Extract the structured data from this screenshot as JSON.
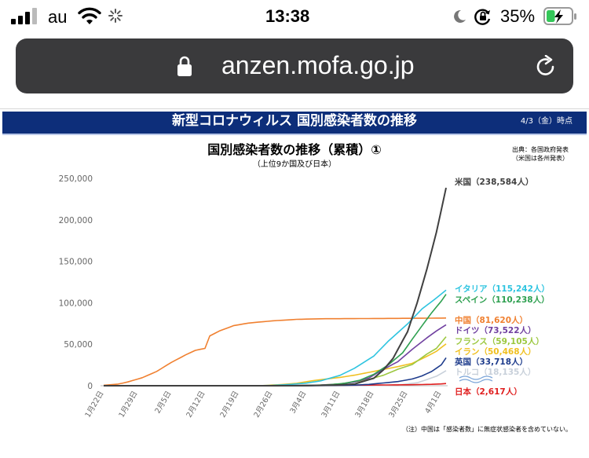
{
  "status_bar": {
    "carrier": "au",
    "time": "13:38",
    "battery_percent": "35%",
    "battery_level": 0.35,
    "battery_color": "#34c759"
  },
  "browser": {
    "url": "anzen.mofa.go.jp",
    "lock_icon": "lock-icon",
    "reload_icon": "reload-icon"
  },
  "banner": {
    "title": "新型コロナウィルス 国別感染者数の推移",
    "date": "4/3（金）時点",
    "background": "#0d2e7a"
  },
  "chart_data": {
    "type": "line",
    "title": "国別感染者数の推移（累積）①",
    "subtitle": "（上位9か国及び日本）",
    "source_lines": [
      "出典：各国政府発表",
      "（米国は各州発表）"
    ],
    "footnote": "（注）中国は「感染者数」に無症状感染者を含めていない。",
    "ylim": [
      0,
      250000
    ],
    "yticks": [
      "0",
      "50,000",
      "100,000",
      "150,000",
      "200,000",
      "250,000"
    ],
    "ytick_values": [
      0,
      50000,
      100000,
      150000,
      200000,
      250000
    ],
    "grid": false,
    "legend": "right",
    "x": [
      "1/22",
      "1/23",
      "1/24",
      "1/25",
      "1/26",
      "1/27",
      "1/28",
      "1/29",
      "1/30",
      "1/31",
      "2/1",
      "2/2",
      "2/3",
      "2/4",
      "2/5",
      "2/6",
      "2/7",
      "2/8",
      "2/9",
      "2/10",
      "2/11",
      "2/12",
      "2/13",
      "2/14",
      "2/15",
      "2/16",
      "2/17",
      "2/18",
      "2/19",
      "2/20",
      "2/21",
      "2/22",
      "2/23",
      "2/24",
      "2/25",
      "2/26",
      "2/27",
      "2/28",
      "2/29",
      "3/1",
      "3/2",
      "3/3",
      "3/4",
      "3/5",
      "3/6",
      "3/7",
      "3/8",
      "3/9",
      "3/10",
      "3/11",
      "3/12",
      "3/13",
      "3/14",
      "3/15",
      "3/16",
      "3/17",
      "3/18",
      "3/19",
      "3/20",
      "3/21",
      "3/22",
      "3/23",
      "3/24",
      "3/25",
      "3/26",
      "3/27",
      "3/28",
      "3/29",
      "3/30",
      "3/31",
      "4/1",
      "4/2"
    ],
    "xticks": [
      "1月22日",
      "1月29日",
      "2月5日",
      "2月12日",
      "2月19日",
      "2月26日",
      "3月4日",
      "3月11日",
      "3月18日",
      "3月25日",
      "4月1日"
    ],
    "xtick_index": [
      0,
      7,
      14,
      21,
      28,
      35,
      42,
      49,
      56,
      63,
      70
    ],
    "series": [
      {
        "name": "米国",
        "label": "米国（238,584人）",
        "color": "#404040",
        "anchors": [
          [
            0,
            0
          ],
          [
            33,
            15
          ],
          [
            42,
            100
          ],
          [
            49,
            1000
          ],
          [
            52,
            2000
          ],
          [
            56,
            9000
          ],
          [
            58,
            19000
          ],
          [
            60,
            33000
          ],
          [
            63,
            65000
          ],
          [
            65,
            100000
          ],
          [
            67,
            140000
          ],
          [
            69,
            185000
          ],
          [
            71,
            238584
          ]
        ]
      },
      {
        "name": "イタリア",
        "label": "イタリア（115,242人）",
        "color": "#2ec4e0",
        "anchors": [
          [
            0,
            0
          ],
          [
            31,
            10
          ],
          [
            35,
            400
          ],
          [
            39,
            1700
          ],
          [
            42,
            3100
          ],
          [
            45,
            5900
          ],
          [
            49,
            12500
          ],
          [
            52,
            21000
          ],
          [
            56,
            35700
          ],
          [
            59,
            53600
          ],
          [
            63,
            74400
          ],
          [
            66,
            92500
          ],
          [
            69,
            105800
          ],
          [
            71,
            115242
          ]
        ]
      },
      {
        "name": "スペイン",
        "label": "スペイン（110,238人）",
        "color": "#2ea050",
        "anchors": [
          [
            0,
            0
          ],
          [
            40,
            150
          ],
          [
            44,
            400
          ],
          [
            47,
            1200
          ],
          [
            50,
            3000
          ],
          [
            53,
            6400
          ],
          [
            56,
            13700
          ],
          [
            59,
            25000
          ],
          [
            62,
            39700
          ],
          [
            64,
            56200
          ],
          [
            66,
            72200
          ],
          [
            68,
            87900
          ],
          [
            70,
            102000
          ],
          [
            71,
            110238
          ]
        ]
      },
      {
        "name": "中国",
        "label": "中国（81,620人）",
        "color": "#f08030",
        "anchors": [
          [
            0,
            550
          ],
          [
            3,
            2000
          ],
          [
            5,
            4500
          ],
          [
            8,
            9700
          ],
          [
            11,
            17200
          ],
          [
            14,
            28000
          ],
          [
            17,
            37200
          ],
          [
            19,
            42600
          ],
          [
            21,
            45000
          ],
          [
            22,
            60000
          ],
          [
            24,
            66000
          ],
          [
            27,
            72500
          ],
          [
            30,
            75500
          ],
          [
            35,
            78200
          ],
          [
            40,
            80000
          ],
          [
            45,
            80700
          ],
          [
            55,
            81000
          ],
          [
            65,
            81300
          ],
          [
            71,
            81620
          ]
        ]
      },
      {
        "name": "ドイツ",
        "label": "ドイツ（73,522人）",
        "color": "#7040a0",
        "anchors": [
          [
            0,
            0
          ],
          [
            40,
            150
          ],
          [
            45,
            800
          ],
          [
            49,
            2000
          ],
          [
            52,
            4500
          ],
          [
            55,
            9300
          ],
          [
            58,
            19800
          ],
          [
            61,
            29000
          ],
          [
            64,
            43900
          ],
          [
            67,
            57600
          ],
          [
            69,
            66000
          ],
          [
            71,
            73522
          ]
        ]
      },
      {
        "name": "フランス",
        "label": "フランス（59,105人）",
        "color": "#9cc840",
        "anchors": [
          [
            0,
            0
          ],
          [
            38,
            100
          ],
          [
            42,
            300
          ],
          [
            46,
            1100
          ],
          [
            49,
            2300
          ],
          [
            52,
            4500
          ],
          [
            55,
            7700
          ],
          [
            58,
            12600
          ],
          [
            61,
            19900
          ],
          [
            64,
            25600
          ],
          [
            67,
            38100
          ],
          [
            69,
            45000
          ],
          [
            71,
            59105
          ]
        ]
      },
      {
        "name": "イラン",
        "label": "イラン（50,468人）",
        "color": "#f0c020",
        "anchors": [
          [
            0,
            0
          ],
          [
            29,
            5
          ],
          [
            33,
            150
          ],
          [
            37,
            1500
          ],
          [
            40,
            2900
          ],
          [
            43,
            5800
          ],
          [
            46,
            8000
          ],
          [
            49,
            10000
          ],
          [
            52,
            12700
          ],
          [
            55,
            16100
          ],
          [
            58,
            19600
          ],
          [
            61,
            23000
          ],
          [
            64,
            27000
          ],
          [
            67,
            35400
          ],
          [
            69,
            41500
          ],
          [
            71,
            50468
          ]
        ]
      },
      {
        "name": "英国",
        "label": "英国（33,718人）",
        "color": "#1e3c8c",
        "anchors": [
          [
            0,
            0
          ],
          [
            42,
            50
          ],
          [
            48,
            400
          ],
          [
            52,
            800
          ],
          [
            55,
            1600
          ],
          [
            58,
            3300
          ],
          [
            61,
            5000
          ],
          [
            64,
            8100
          ],
          [
            66,
            11800
          ],
          [
            68,
            17100
          ],
          [
            70,
            25200
          ],
          [
            71,
            33718
          ]
        ]
      },
      {
        "name": "トルコ",
        "label": "トルコ（18,135人）",
        "color": "#c8d0da",
        "anchors": [
          [
            0,
            0
          ],
          [
            48,
            0
          ],
          [
            52,
            5
          ],
          [
            56,
            200
          ],
          [
            59,
            670
          ],
          [
            62,
            1500
          ],
          [
            65,
            3600
          ],
          [
            67,
            7400
          ],
          [
            69,
            11500
          ],
          [
            71,
            18135
          ]
        ]
      },
      {
        "name": "日本",
        "label": "日本（2,617人）",
        "color": "#e02020",
        "anchors": [
          [
            0,
            0
          ],
          [
            20,
            10
          ],
          [
            30,
            100
          ],
          [
            40,
            300
          ],
          [
            50,
            640
          ],
          [
            55,
            800
          ],
          [
            60,
            1000
          ],
          [
            65,
            1300
          ],
          [
            68,
            1700
          ],
          [
            70,
            2200
          ],
          [
            71,
            2617
          ]
        ]
      }
    ]
  }
}
